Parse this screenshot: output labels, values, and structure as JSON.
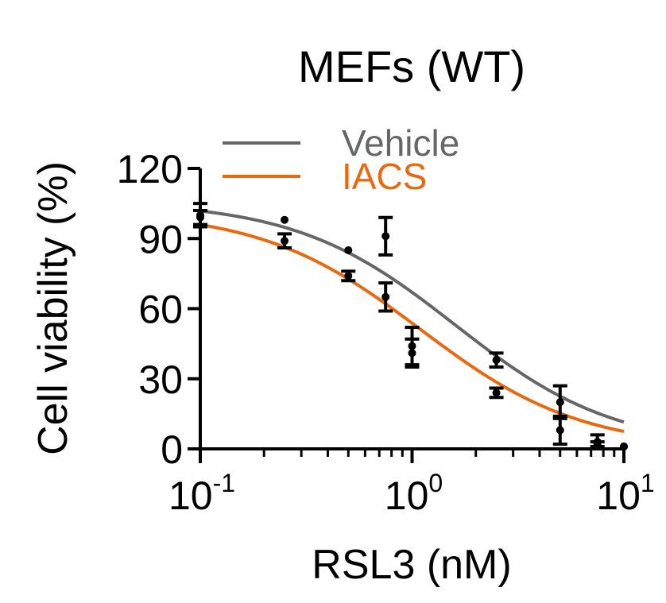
{
  "chart_data": {
    "type": "scatter",
    "title": "MEFs (WT)",
    "xlabel": "RSL3 (nM)",
    "ylabel": "Cell viability (%)",
    "x_scale": "log",
    "xlim": [
      0.1,
      10
    ],
    "ylim": [
      0,
      120
    ],
    "x_ticks": [
      {
        "value": 0.1,
        "base": "10",
        "exp": "-1"
      },
      {
        "value": 1,
        "base": "10",
        "exp": "0"
      },
      {
        "value": 10,
        "base": "10",
        "exp": "1"
      }
    ],
    "y_ticks": [
      {
        "value": 0,
        "label": "0"
      },
      {
        "value": 30,
        "label": "30"
      },
      {
        "value": 60,
        "label": "60"
      },
      {
        "value": 90,
        "label": "90"
      },
      {
        "value": 120,
        "label": "120"
      }
    ],
    "legend_position": "top-left",
    "grid": false,
    "series": [
      {
        "name": "Vehicle",
        "color": "#666666",
        "fit": {
          "top": 106,
          "bottom": 0,
          "ic50": 1.6,
          "hill": 1.15
        },
        "points": [
          {
            "x": 0.1,
            "y": 100,
            "err": 5
          },
          {
            "x": 0.25,
            "y": 98,
            "err": 0
          },
          {
            "x": 0.5,
            "y": 85,
            "err": 0
          },
          {
            "x": 0.75,
            "y": 91,
            "err": 8
          },
          {
            "x": 1,
            "y": 44,
            "err": 8
          },
          {
            "x": 2.5,
            "y": 38,
            "err": 3
          },
          {
            "x": 5,
            "y": 20,
            "err": 7
          },
          {
            "x": 7.5,
            "y": 3,
            "err": 3
          },
          {
            "x": 10,
            "y": 1,
            "err": 0
          }
        ]
      },
      {
        "name": "IACS",
        "color": "#E8690F",
        "fit": {
          "top": 102,
          "bottom": 0,
          "ic50": 1.1,
          "hill": 1.15
        },
        "points": [
          {
            "x": 0.1,
            "y": 99,
            "err": 3
          },
          {
            "x": 0.25,
            "y": 89,
            "err": 3
          },
          {
            "x": 0.5,
            "y": 74,
            "err": 2
          },
          {
            "x": 0.75,
            "y": 65,
            "err": 6
          },
          {
            "x": 1,
            "y": 41,
            "err": 6
          },
          {
            "x": 2.5,
            "y": 24,
            "err": 2
          },
          {
            "x": 5,
            "y": 8,
            "err": 6
          },
          {
            "x": 7.5,
            "y": 2,
            "err": 1
          },
          {
            "x": 10,
            "y": 1,
            "err": 0
          }
        ]
      }
    ]
  }
}
